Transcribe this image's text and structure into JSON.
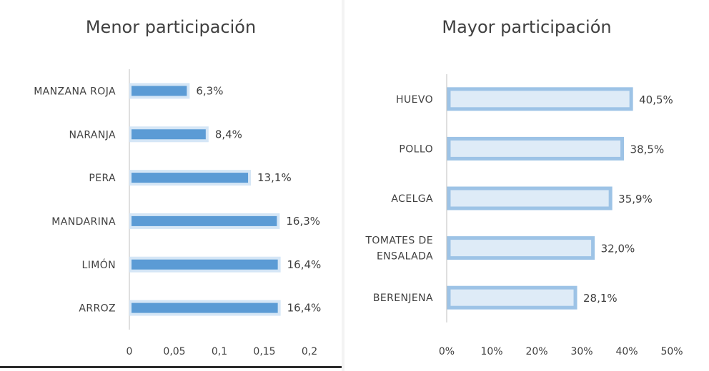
{
  "chart_data": [
    {
      "type": "bar",
      "orientation": "horizontal",
      "title": "Menor participación",
      "categories": [
        "MANZANA ROJA",
        "NARANJA",
        "PERA",
        "MANDARINA",
        "LIMÓN",
        "ARROZ"
      ],
      "values": [
        0.063,
        0.084,
        0.131,
        0.163,
        0.164,
        0.164
      ],
      "data_labels": [
        "6,3%",
        "8,4%",
        "13,1%",
        "16,3%",
        "16,4%",
        "16,4%"
      ],
      "xlim": [
        0,
        0.2
      ],
      "xticks": [
        "0",
        "0,05",
        "0,1",
        "0,15",
        "0,2"
      ],
      "xlabel": "",
      "ylabel": "",
      "grid": false,
      "colors": {
        "bar": "#5b9bd5",
        "bar_halo": "#d5e6f6",
        "axis": "#bfbfbf"
      }
    },
    {
      "type": "bar",
      "orientation": "horizontal",
      "title": "Mayor participación",
      "categories": [
        "HUEVO",
        "POLLO",
        "ACELGA",
        "TOMATES DE ENSALADA",
        "BERENJENA"
      ],
      "category_lines": [
        [
          "HUEVO"
        ],
        [
          "POLLO"
        ],
        [
          "ACELGA"
        ],
        [
          "TOMATES DE",
          "ENSALADA"
        ],
        [
          "BERENJENA"
        ]
      ],
      "values": [
        40.5,
        38.5,
        35.9,
        32.0,
        28.1
      ],
      "data_labels": [
        "40,5%",
        "38,5%",
        "35,9%",
        "32,0%",
        "28,1%"
      ],
      "xlim": [
        0,
        50
      ],
      "xticks": [
        "0%",
        "10%",
        "20%",
        "30%",
        "40%",
        "50%"
      ],
      "xlabel": "",
      "ylabel": "",
      "grid": false,
      "colors": {
        "bar_fill": "#deebf7",
        "bar_outline": "#9dc3e6",
        "axis": "#bfbfbf"
      }
    }
  ]
}
